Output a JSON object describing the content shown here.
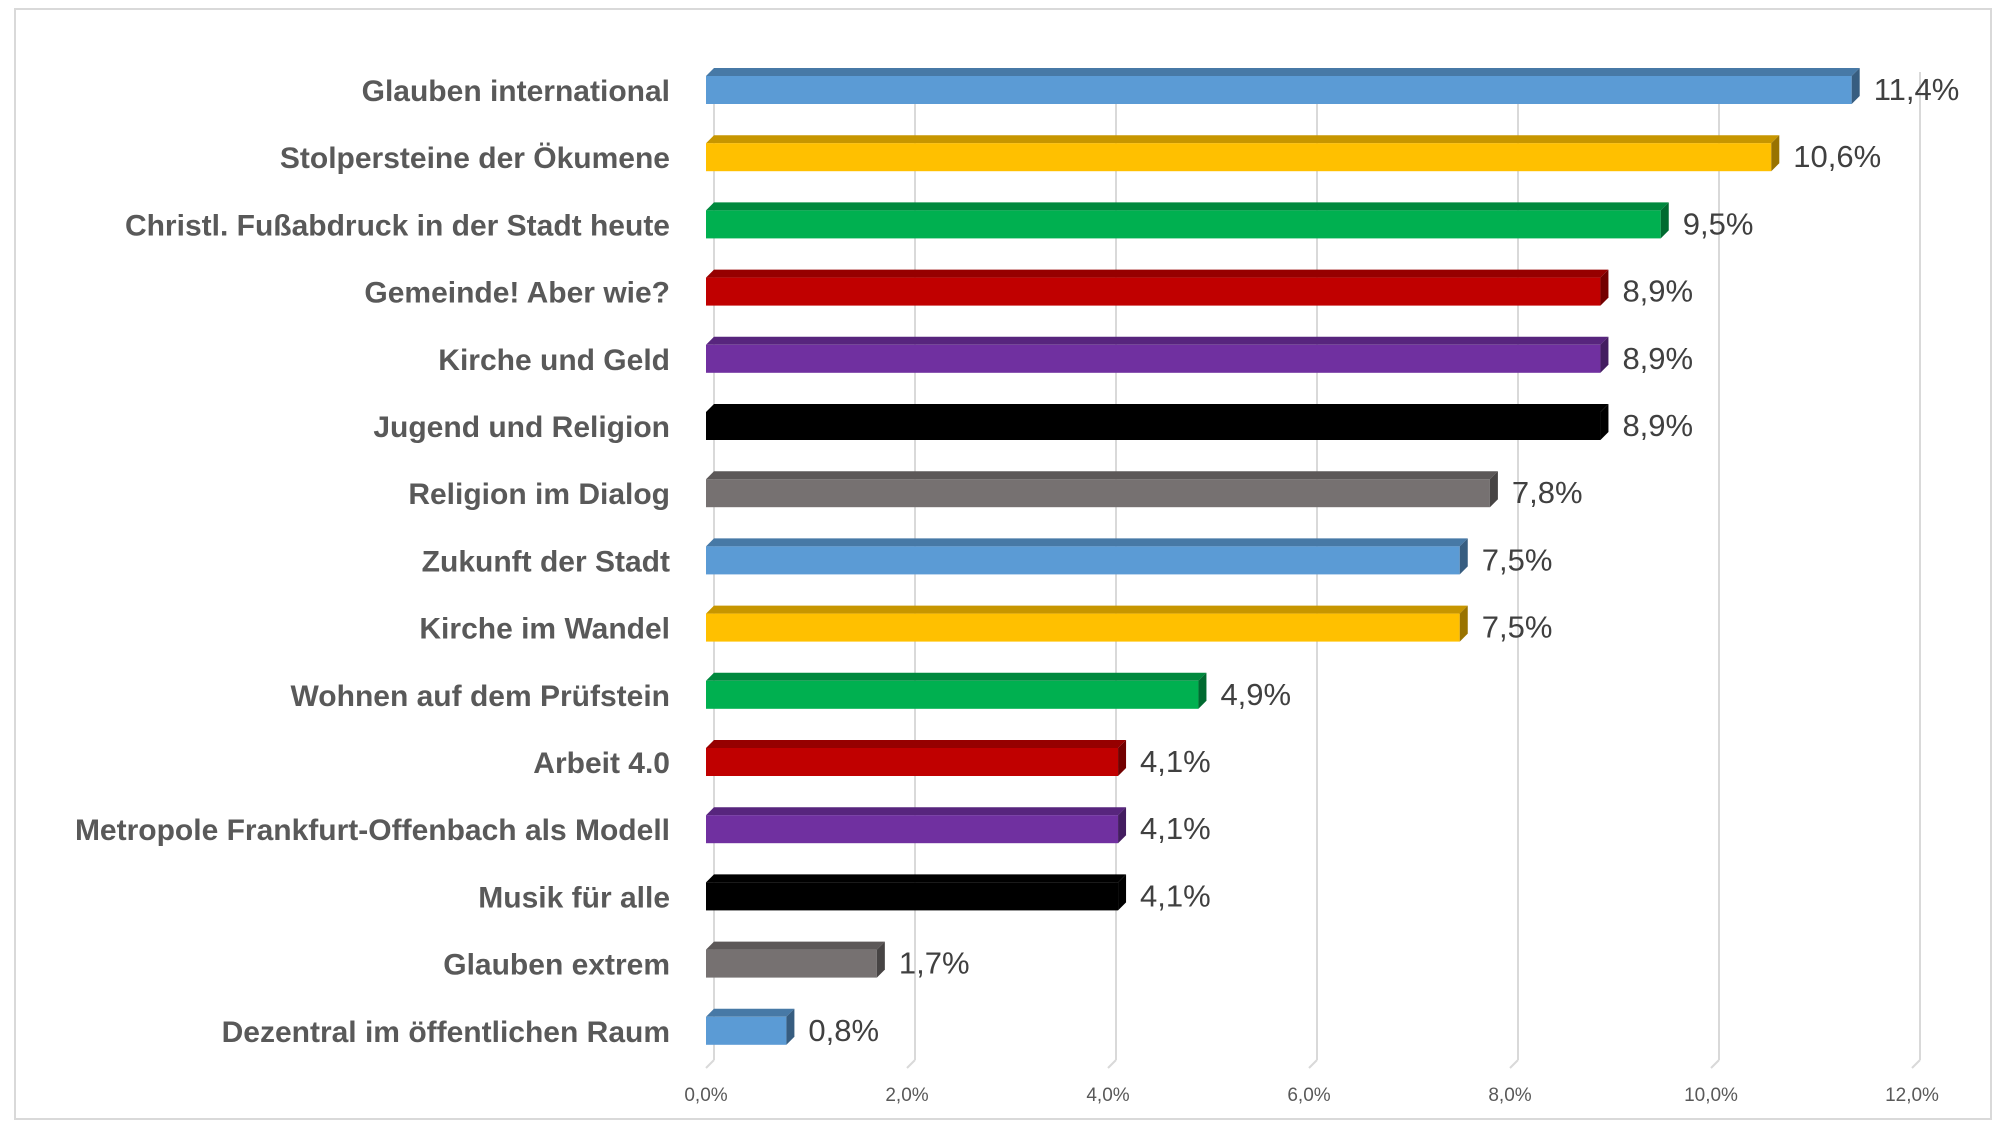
{
  "chart_data": {
    "type": "bar",
    "orientation": "horizontal",
    "categories": [
      "Glauben international",
      "Stolpersteine der Ökumene",
      "Christl. Fußabdruck in der Stadt heute",
      "Gemeinde! Aber wie?",
      "Kirche und Geld",
      "Jugend und Religion",
      "Religion im Dialog",
      "Zukunft der Stadt",
      "Kirche im Wandel",
      "Wohnen auf dem Prüfstein",
      "Arbeit 4.0",
      "Metropole Frankfurt-Offenbach als Modell",
      "Musik für alle",
      "Glauben extrem",
      "Dezentral im öffentlichen Raum"
    ],
    "values": [
      11.4,
      10.6,
      9.5,
      8.9,
      8.9,
      8.9,
      7.8,
      7.5,
      7.5,
      4.9,
      4.1,
      4.1,
      4.1,
      1.7,
      0.8
    ],
    "value_labels": [
      "11,4%",
      "10,6%",
      "9,5%",
      "8,9%",
      "8,9%",
      "8,9%",
      "7,8%",
      "7,5%",
      "7,5%",
      "4,9%",
      "4,1%",
      "4,1%",
      "4,1%",
      "1,7%",
      "0,8%"
    ],
    "colors": [
      "#5b9bd5",
      "#ffc000",
      "#00b050",
      "#c00000",
      "#7030a0",
      "#000000",
      "#767171",
      "#5b9bd5",
      "#ffc000",
      "#00b050",
      "#c00000",
      "#7030a0",
      "#000000",
      "#767171",
      "#5b9bd5"
    ],
    "xlim": [
      0,
      12
    ],
    "xticks": [
      0,
      2,
      4,
      6,
      8,
      10,
      12
    ],
    "xtick_labels": [
      "0,0%",
      "2,0%",
      "4,0%",
      "6,0%",
      "8,0%",
      "10,0%",
      "12,0%"
    ],
    "grid": "vertical",
    "legend": "none",
    "style": "3d-bars"
  }
}
